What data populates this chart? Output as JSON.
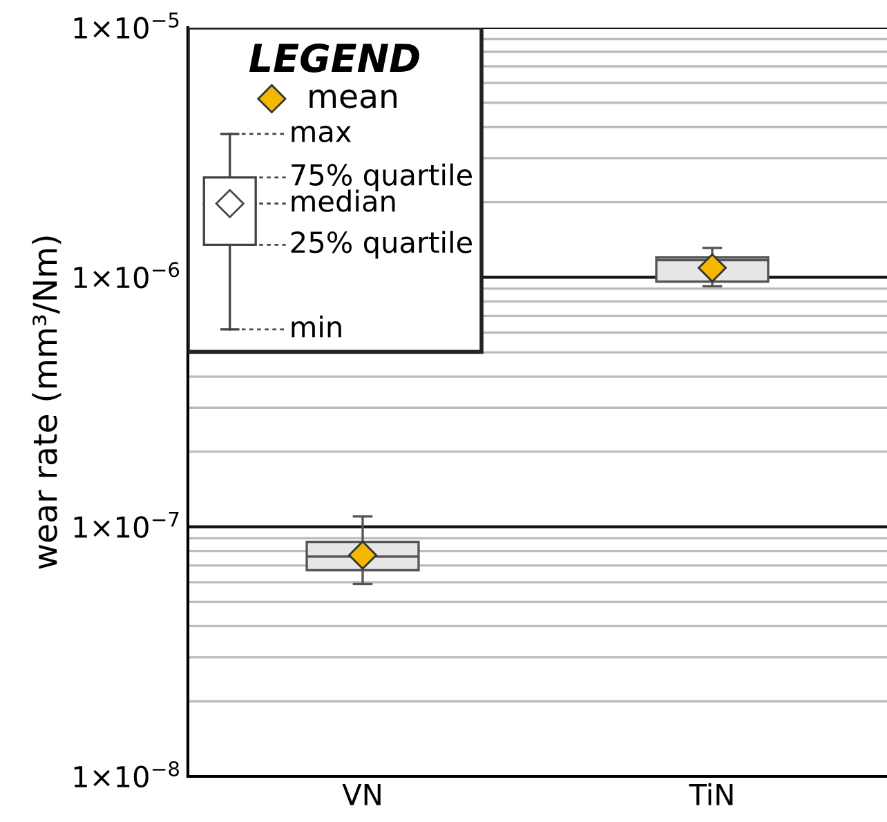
{
  "chart_data": {
    "type": "box",
    "ylabel": "wear rate (mm³/Nm)",
    "categories": [
      "VN",
      "TiN"
    ],
    "log": "y",
    "ylim": [
      1e-08,
      1e-05
    ],
    "yticks": [
      {
        "value": 1e-08,
        "label": "1×10$^{−8}$"
      },
      {
        "value": 1e-07,
        "label": "1×10$^{−7}$"
      },
      {
        "value": 1e-06,
        "label": "1×10$^{−6}$"
      },
      {
        "value": 1e-05,
        "label": "1×10$^{−5}$"
      }
    ],
    "grid": "y",
    "color": "#e6e6e6",
    "boxes": [
      {
        "low": 5.9e-08,
        "q1": 6.7e-08,
        "median": 7.6e-08,
        "q3": 8.7e-08,
        "high": 1.1e-07
      },
      {
        "low": 9.2e-07,
        "q1": 9.6e-07,
        "median": 1.17e-06,
        "q3": 1.2e-06,
        "high": 1.31e-06
      }
    ],
    "series": [
      {
        "name": "mean",
        "type": "scatter",
        "color": "#f5b800",
        "marker": "diamond",
        "x": [
          "VN",
          "TiN"
        ],
        "values": [
          7.7e-08,
          1.09e-06
        ]
      }
    ],
    "legend": "top left",
    "legend_title": "LEGEND",
    "annotations": [
      "max",
      "75% quartile",
      "median",
      "25% quartile",
      "min"
    ]
  }
}
